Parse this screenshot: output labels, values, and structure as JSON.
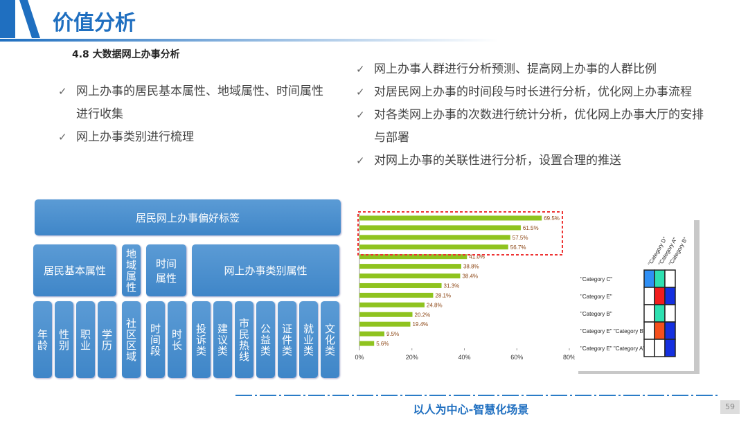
{
  "header": {
    "title": "价值分析",
    "section": "4.8 大数据网上办事分析"
  },
  "left_bullets": [
    "网上办事的居民基本属性、地域属性、时间属性进行收集",
    "网上办事类别进行梳理"
  ],
  "right_bullets": [
    "网上办事人群进行分析预测、提高网上办事的人群比例",
    "对居民网上办事的时间段与时长进行分析，优化网上办事流程",
    "对各类网上办事的次数进行统计分析，优化网上办事大厅的安排与部署",
    "对网上办事的关联性进行分析，设置合理的推送"
  ],
  "tag_tree": {
    "root": "居民网上办事偏好标签",
    "groups": [
      {
        "label": "居民基本属性",
        "items": [
          "年龄",
          "性别",
          "职业",
          "学历"
        ]
      },
      {
        "label": "地域属性",
        "items": [
          "社区区域"
        ]
      },
      {
        "label": "时间属性",
        "items": [
          "时间段",
          "时长"
        ]
      },
      {
        "label": "网上办事类别属性",
        "items": [
          "投诉类",
          "建议类",
          "市民热线",
          "公益类",
          "证件类",
          "就业类",
          "文化类"
        ]
      }
    ]
  },
  "bar_chart": {
    "type": "bar",
    "orientation": "horizontal",
    "color": "#8fc31f",
    "values": [
      69.5,
      61.5,
      57.5,
      56.7,
      41.0,
      38.8,
      38.4,
      31.3,
      28.1,
      24.8,
      20.2,
      19.4,
      9.5,
      5.6
    ],
    "value_labels": [
      "69.5%",
      "61.5%",
      "57.5%",
      "56.7%",
      "41.0%",
      "38.8%",
      "38.4%",
      "31.3%",
      "28.1%",
      "24.8%",
      "20.2%",
      "19.4%",
      "9.5%",
      "5.6%"
    ],
    "xlim": [
      0,
      80
    ],
    "xticks": [
      {
        "value": 0,
        "label": "0%"
      },
      {
        "value": 20,
        "label": "20%"
      },
      {
        "value": 40,
        "label": "40%"
      },
      {
        "value": 60,
        "label": "60%"
      },
      {
        "value": 80,
        "label": "80%"
      }
    ]
  },
  "heatmap": {
    "columns": [
      "\"Category D\"",
      "\"Category A\"",
      "\"Category B\""
    ],
    "rows": [
      "\"Category C\"",
      "\"Category E\"",
      "\"Category B\"",
      "\"Category E\" \"Category B\"",
      "\"Category E\" \"Category A\""
    ]
  },
  "footer": {
    "slogan": "以人为中心-智慧化场景",
    "page": "59"
  }
}
